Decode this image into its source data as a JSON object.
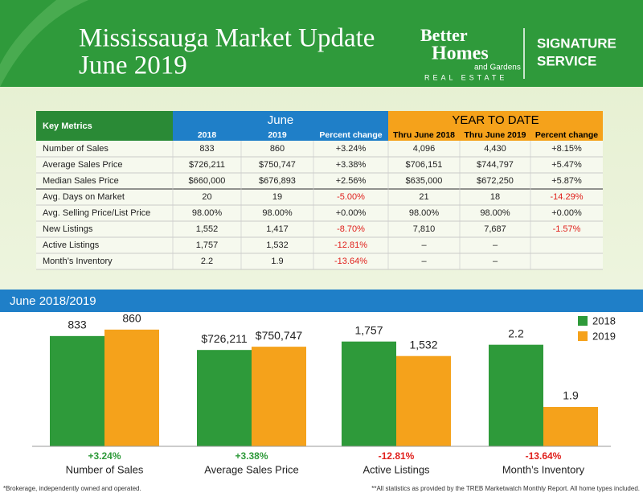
{
  "header": {
    "title": [
      "Mississauga Market Update",
      "June 2019"
    ],
    "logo": [
      "Better",
      "Homes",
      "and Gardens",
      "REAL ESTATE"
    ],
    "service": [
      "SIGNATURE",
      "SERVICE"
    ]
  },
  "table": {
    "corner": "Key Metrics",
    "groups": [
      "June",
      "YEAR TO DATE"
    ],
    "subheaders": [
      "2018",
      "2019",
      "Percent change",
      "Thru June 2018",
      "Thru June 2019",
      "Percent change"
    ],
    "rows": [
      [
        "Number of Sales",
        "833",
        "860",
        "+3.24%",
        "4,096",
        "4,430",
        "+8.15%"
      ],
      [
        "Average Sales Price",
        "$726,211",
        "$750,747",
        "+3.38%",
        "$706,151",
        "$744,797",
        "+5.47%"
      ],
      [
        "Median Sales Price",
        "$660,000",
        "$676,893",
        "+2.56%",
        "$635,000",
        "$672,250",
        "+5.87%"
      ],
      [
        "Avg. Days on Market",
        "20",
        "19",
        "-5.00%",
        "21",
        "18",
        "-14.29%"
      ],
      [
        "Avg. Selling Price/List Price",
        "98.00%",
        "98.00%",
        "+0.00%",
        "98.00%",
        "98.00%",
        "+0.00%"
      ],
      [
        "New Listings",
        "1,552",
        "1,417",
        "-8.70%",
        "7,810",
        "7,687",
        "-1.57%"
      ],
      [
        "Active Listings",
        "1,757",
        "1,532",
        "-12.81%",
        "–",
        "–",
        ""
      ],
      [
        "Month’s Inventory",
        "2.2",
        "1.9",
        "-13.64%",
        "–",
        "–",
        ""
      ]
    ]
  },
  "chart_data": {
    "type": "bar",
    "title": "June 2018/2019",
    "series": [
      {
        "name": "2018",
        "color": "#2e9a3a"
      },
      {
        "name": "2019",
        "color": "#f5a21b"
      }
    ],
    "groups": [
      {
        "name": "Number of Sales",
        "change": "+3.24%",
        "ylim": [
          370,
          927
        ],
        "values": [
          833,
          860
        ]
      },
      {
        "name": "Average Sales Price",
        "change": "+3.38%",
        "ylim": [
          0,
          1000000
        ],
        "values": [
          726211,
          750747
        ],
        "value_labels": [
          "$726,211",
          "$750,747"
        ]
      },
      {
        "name": "Active Listings",
        "change": "-12.81%",
        "ylim": [
          130,
          2190
        ],
        "values": [
          1757,
          1532
        ],
        "value_labels": [
          "1,757",
          "1,532"
        ]
      },
      {
        "name": "Month’s Inventory",
        "change": "-13.64%",
        "ylim": [
          1.71,
          2.35
        ],
        "values": [
          2.2,
          1.9
        ]
      }
    ]
  },
  "footnotes": [
    "*Brokerage, independently owned and operated.",
    "**All statistics as provided by the TREB Marketwatch Monthly Report. All home types included."
  ]
}
